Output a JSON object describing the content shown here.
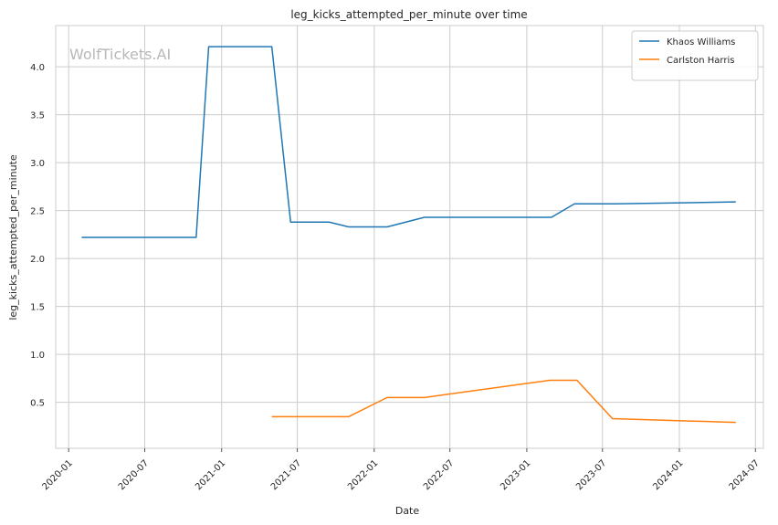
{
  "chart_data": {
    "type": "line",
    "title": "leg_kicks_attempted_per_minute over time",
    "xlabel": "Date",
    "ylabel": "leg_kicks_attempted_per_minute",
    "watermark": "WolfTickets.AI",
    "grid": true,
    "legend_position": "top-right",
    "xlim": [
      "2019-12-01",
      "2024-07-20"
    ],
    "ylim": [
      0.02,
      4.43
    ],
    "x_ticks": [
      "2020-01-01",
      "2020-07-01",
      "2021-01-01",
      "2021-07-01",
      "2022-01-01",
      "2022-07-01",
      "2023-01-01",
      "2023-07-01",
      "2024-01-01",
      "2024-07-01"
    ],
    "x_tick_labels": [
      "2020-01",
      "2020-07",
      "2021-01",
      "2021-07",
      "2022-01",
      "2022-07",
      "2023-01",
      "2023-07",
      "2024-01",
      "2024-07"
    ],
    "y_ticks": [
      0.5,
      1.0,
      1.5,
      2.0,
      2.5,
      3.0,
      3.5,
      4.0
    ],
    "y_tick_labels": [
      "0.5",
      "1.0",
      "1.5",
      "2.0",
      "2.5",
      "3.0",
      "3.5",
      "4.0"
    ],
    "series": [
      {
        "name": "Khaos Williams",
        "color": "#1f77b4",
        "points": [
          {
            "x": "2020-02-01",
            "y": 2.22
          },
          {
            "x": "2020-11-01",
            "y": 2.22
          },
          {
            "x": "2020-12-01",
            "y": 4.21
          },
          {
            "x": "2021-05-01",
            "y": 4.21
          },
          {
            "x": "2021-06-15",
            "y": 2.38
          },
          {
            "x": "2021-09-15",
            "y": 2.38
          },
          {
            "x": "2021-11-01",
            "y": 2.33
          },
          {
            "x": "2022-02-01",
            "y": 2.33
          },
          {
            "x": "2022-05-01",
            "y": 2.43
          },
          {
            "x": "2023-03-01",
            "y": 2.43
          },
          {
            "x": "2023-04-25",
            "y": 2.57
          },
          {
            "x": "2023-08-01",
            "y": 2.57
          },
          {
            "x": "2024-05-15",
            "y": 2.59
          }
        ]
      },
      {
        "name": "Carlston Harris",
        "color": "#ff7f0e",
        "points": [
          {
            "x": "2021-05-01",
            "y": 0.35
          },
          {
            "x": "2021-11-01",
            "y": 0.35
          },
          {
            "x": "2022-02-01",
            "y": 0.55
          },
          {
            "x": "2022-05-01",
            "y": 0.55
          },
          {
            "x": "2023-02-25",
            "y": 0.73
          },
          {
            "x": "2023-05-01",
            "y": 0.73
          },
          {
            "x": "2023-07-25",
            "y": 0.33
          },
          {
            "x": "2024-05-15",
            "y": 0.29
          }
        ]
      }
    ]
  }
}
